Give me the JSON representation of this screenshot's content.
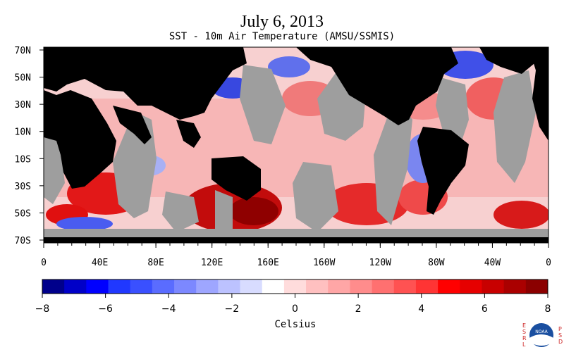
{
  "header": {
    "title": "July 6, 2013",
    "subtitle": "SST - 10m Air Temperature (AMSU/SSMIS)"
  },
  "map": {
    "lat_labels": [
      "70N",
      "50N",
      "30N",
      "10N",
      "10S",
      "30S",
      "50S",
      "70S"
    ],
    "lon_labels": [
      "0",
      "40E",
      "80E",
      "120E",
      "160E",
      "160W",
      "120W",
      "80W",
      "40W",
      "0"
    ],
    "colors": {
      "land": "#000000",
      "missing": "#9e9e9e",
      "warm": "#e8202a",
      "cold": "#3a4ee0"
    }
  },
  "colorbar": {
    "ticks": [
      "−8",
      "−6",
      "−4",
      "−2",
      "0",
      "2",
      "4",
      "6",
      "8"
    ],
    "label": "Celsius",
    "colors": [
      "#00008b",
      "#0000c8",
      "#0000ff",
      "#2038ff",
      "#3a50ff",
      "#5a6cff",
      "#7c88ff",
      "#9ea6ff",
      "#bcc2ff",
      "#d8dcff",
      "#ffffff",
      "#ffdcdc",
      "#ffc0c0",
      "#ffa6a6",
      "#ff8c8c",
      "#ff7070",
      "#ff5252",
      "#ff3434",
      "#ff0000",
      "#e60000",
      "#c80000",
      "#aa0000",
      "#8b0000"
    ]
  },
  "logo": {
    "left_letters": "ESRL",
    "right_letters": "PSD",
    "center": "NOAA"
  }
}
